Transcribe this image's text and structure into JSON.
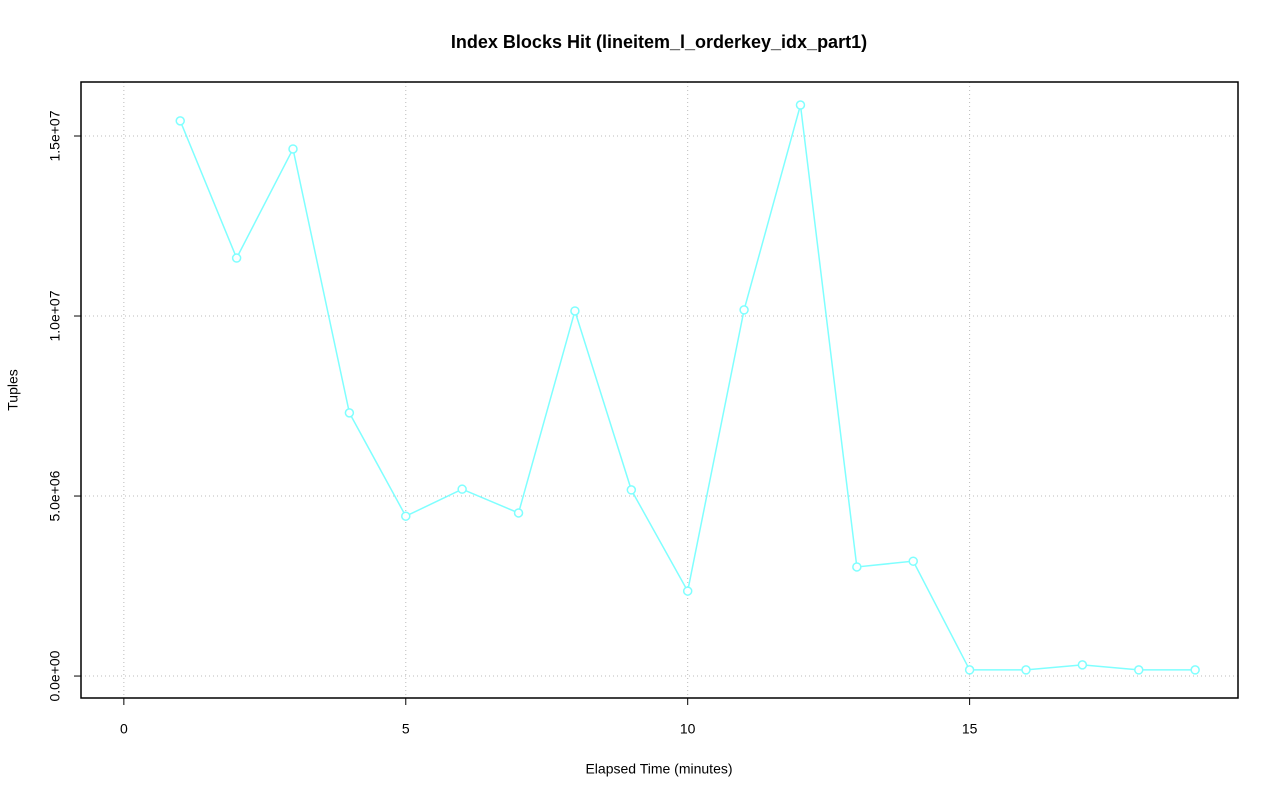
{
  "chart_data": {
    "type": "line",
    "title": "Index Blocks Hit (lineitem_l_orderkey_idx_part1)",
    "xlabel": "Elapsed Time (minutes)",
    "ylabel": "Tuples",
    "x": [
      1,
      2,
      3,
      4,
      5,
      6,
      7,
      8,
      9,
      10,
      11,
      12,
      13,
      14,
      15,
      16,
      17,
      18,
      19
    ],
    "series": [
      {
        "color": "#7fffff",
        "values": [
          15420000,
          11610000,
          14640000,
          7310000,
          4440000,
          5190000,
          4530000,
          10140000,
          5170000,
          2360000,
          10170000,
          15860000,
          3030000,
          3190000,
          170000,
          170000,
          310000,
          170000,
          170000
        ]
      }
    ],
    "xlim": [
      -0.76,
      19.76
    ],
    "xticks": [
      0,
      5,
      10,
      15
    ],
    "ylim": [
      -610000,
      16500000
    ],
    "yticks": [
      {
        "value": 0,
        "label": "0.0e+00"
      },
      {
        "value": 5000000,
        "label": "5.0e+06"
      },
      {
        "value": 10000000,
        "label": "1.0e+07"
      },
      {
        "value": 15000000,
        "label": "1.5e+07"
      }
    ],
    "grid": true
  }
}
